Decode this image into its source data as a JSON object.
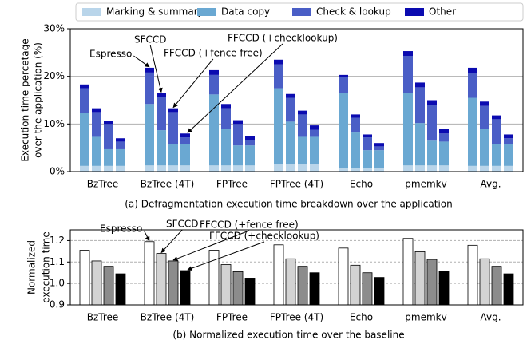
{
  "chart_data": [
    {
      "type": "bar",
      "stacked": true,
      "categories": [
        "BzTree",
        "BzTree (4T)",
        "FPTree",
        "FPTree (4T)",
        "Echo",
        "pmemkv",
        "Avg."
      ],
      "bars": [
        "Espresso",
        "SFCCD",
        "FFCCD (+fence free)",
        "FFCCD (+checklookup)"
      ],
      "ylabel": [
        "Execution time percetage",
        "over the application (%)"
      ],
      "caption": "(a) Defragmentation execution time breakdown over the application",
      "ylim": [
        0,
        30
      ],
      "yticks": [
        {
          "value": 0,
          "label": "0%"
        },
        {
          "value": 10,
          "label": "10%"
        },
        {
          "value": 20,
          "label": "20%"
        },
        {
          "value": 30,
          "label": "30%"
        }
      ],
      "grid": true,
      "legend": "top",
      "series": [
        {
          "name": "Marking & summary",
          "color": "#b9d5ea",
          "values": [
            [
              1.2,
              1.2,
              1.2,
              1.2
            ],
            [
              1.3,
              1.3,
              1.3,
              1.3
            ],
            [
              1.3,
              1.3,
              1.3,
              1.3
            ],
            [
              1.5,
              1.5,
              1.5,
              1.5
            ],
            [
              0.8,
              0.8,
              0.8,
              0.8
            ],
            [
              1.3,
              1.3,
              1.3,
              1.3
            ],
            [
              1.2,
              1.2,
              1.2,
              1.2
            ]
          ]
        },
        {
          "name": "Data copy",
          "color": "#6aa8d2",
          "values": [
            [
              11.1,
              6.1,
              3.5,
              3.5
            ],
            [
              12.9,
              7.4,
              4.5,
              4.5
            ],
            [
              14.9,
              7.7,
              4.2,
              4.2
            ],
            [
              16.0,
              9.0,
              5.8,
              5.8
            ],
            [
              15.7,
              7.4,
              3.7,
              3.7
            ],
            [
              15.2,
              8.9,
              5.2,
              5.0
            ],
            [
              14.3,
              7.8,
              4.6,
              4.6
            ]
          ]
        },
        {
          "name": "Check & lookup",
          "color": "#4a5ec6",
          "values": [
            [
              5.2,
              5.2,
              5.3,
              1.6
            ],
            [
              6.6,
              7.0,
              6.7,
              1.4
            ],
            [
              4.1,
              4.3,
              4.5,
              1.2
            ],
            [
              5.0,
              5.0,
              4.7,
              1.5
            ],
            [
              3.3,
              3.1,
              2.7,
              0.8
            ],
            [
              7.8,
              7.5,
              7.5,
              1.7
            ],
            [
              5.2,
              4.8,
              5.2,
              1.2
            ]
          ]
        },
        {
          "name": "Other",
          "color": "#0b0bb0",
          "values": [
            [
              0.8,
              0.8,
              0.7,
              0.7
            ],
            [
              1.0,
              0.8,
              0.8,
              0.8
            ],
            [
              1.0,
              0.9,
              0.8,
              0.8
            ],
            [
              1.0,
              0.8,
              0.8,
              0.9
            ],
            [
              0.5,
              0.7,
              0.6,
              0.7
            ],
            [
              1.0,
              1.0,
              1.0,
              1.0
            ],
            [
              1.1,
              0.9,
              0.8,
              0.8
            ]
          ]
        }
      ]
    },
    {
      "type": "bar",
      "categories": [
        "BzTree",
        "BzTree (4T)",
        "FPTree",
        "FPTree (4T)",
        "Echo",
        "pmemkv",
        "Avg."
      ],
      "ylabel": [
        "Normalized",
        "execution time"
      ],
      "caption": "(b) Normalized execution time over the baseline",
      "ylim": [
        0.9,
        1.25
      ],
      "yticks": [
        {
          "value": 0.9,
          "label": "0.9"
        },
        {
          "value": 1.0,
          "label": "1.0"
        },
        {
          "value": 1.1,
          "label": "1.1"
        },
        {
          "value": 1.2,
          "label": "1.2"
        }
      ],
      "grid": true,
      "series": [
        {
          "name": "Espresso",
          "color": "#ffffff",
          "values": [
            1.155,
            1.195,
            1.155,
            1.18,
            1.165,
            1.21,
            1.178
          ]
        },
        {
          "name": "SFCCD",
          "color": "#d3d3d3",
          "values": [
            1.105,
            1.14,
            1.088,
            1.115,
            1.085,
            1.148,
            1.115
          ]
        },
        {
          "name": "FFCCD (+fence free)",
          "color": "#8c8c8c",
          "values": [
            1.08,
            1.105,
            1.055,
            1.08,
            1.05,
            1.112,
            1.08
          ]
        },
        {
          "name": "FFCCD (+checklookup)",
          "color": "#000000",
          "values": [
            1.045,
            1.06,
            1.025,
            1.05,
            1.028,
            1.055,
            1.045
          ]
        }
      ]
    }
  ]
}
